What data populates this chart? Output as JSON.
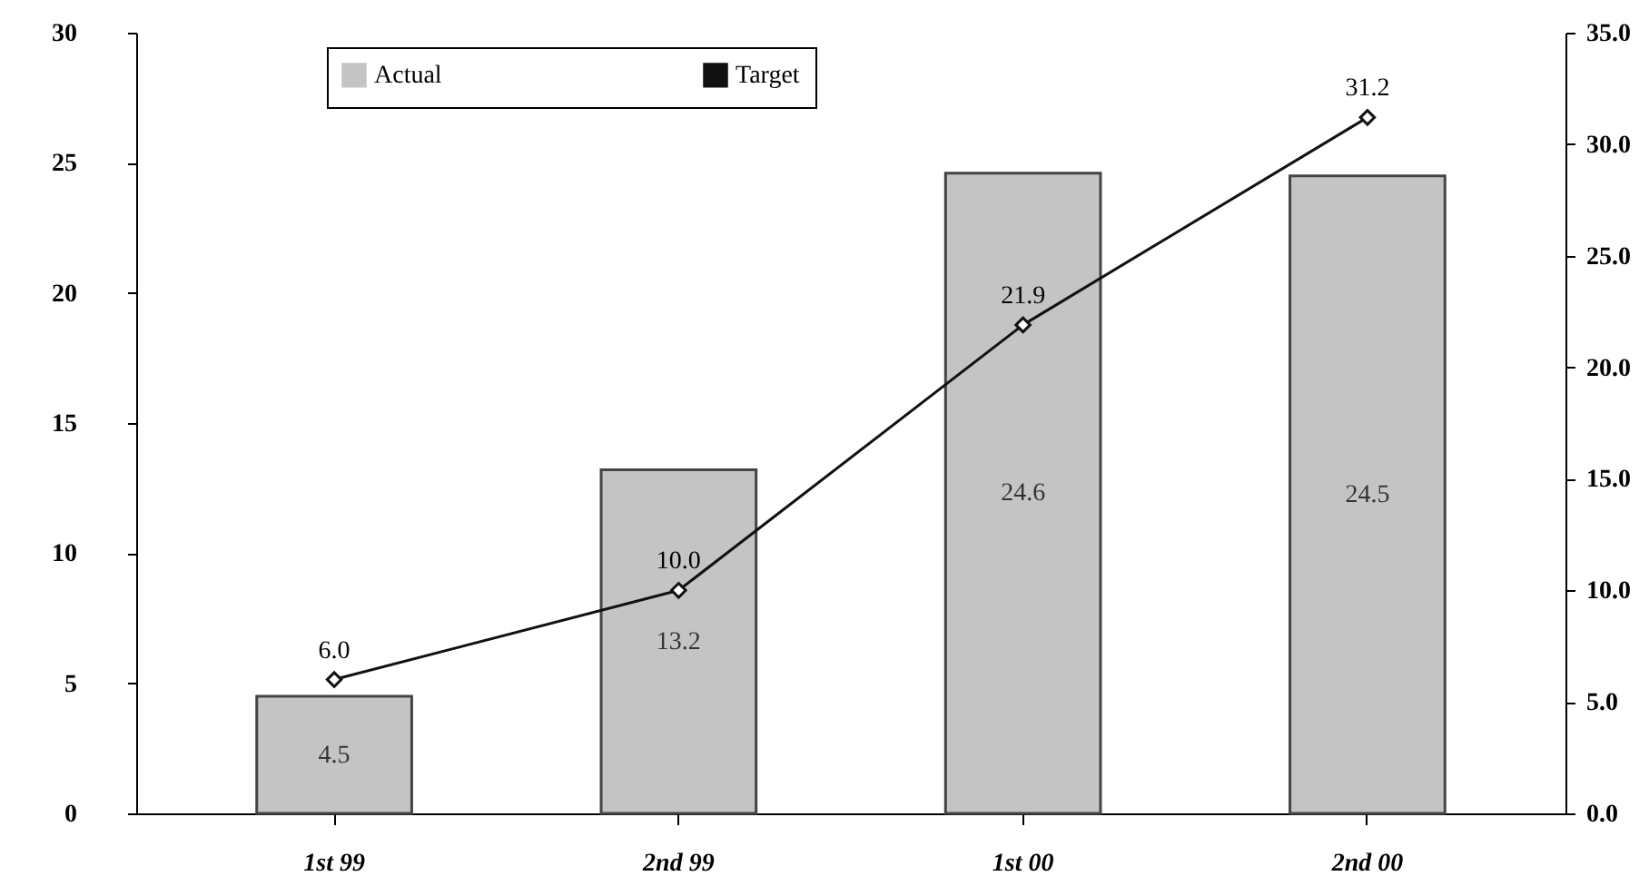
{
  "chart_data": {
    "type": "bar",
    "categories": [
      "1st 99",
      "2nd 99",
      "1st 00",
      "2nd 00"
    ],
    "series": [
      {
        "name": "Actual",
        "color": "#c4c4c4",
        "values": [
          4.5,
          13.2,
          24.6,
          24.5
        ],
        "value_labels": [
          "4.5",
          "13.2",
          "24.6",
          "24.5"
        ]
      },
      {
        "name": "Target",
        "type": "line",
        "axis": "y2",
        "color": "#111111",
        "values": [
          6.0,
          10.0,
          21.9,
          31.2
        ],
        "value_labels": [
          "6.0",
          "10.0",
          "21.9",
          "31.2"
        ],
        "marker": "diamond",
        "line_style": "solid"
      }
    ],
    "ylim": [
      0,
      30
    ],
    "yticks": [
      0,
      5,
      10,
      15,
      20,
      25,
      30
    ],
    "y2lim": [
      0,
      35
    ],
    "y2ticks": [
      {
        "value": 0,
        "label": "0.0"
      },
      {
        "value": 5,
        "label": "5.0"
      },
      {
        "value": 10,
        "label": "10.0"
      },
      {
        "value": 15,
        "label": "15.0"
      },
      {
        "value": 20,
        "label": "20.0"
      },
      {
        "value": 25,
        "label": "25.0"
      },
      {
        "value": 30,
        "label": "30.0"
      },
      {
        "value": 35,
        "label": "35.0"
      }
    ],
    "legend": "top",
    "grid": false
  }
}
